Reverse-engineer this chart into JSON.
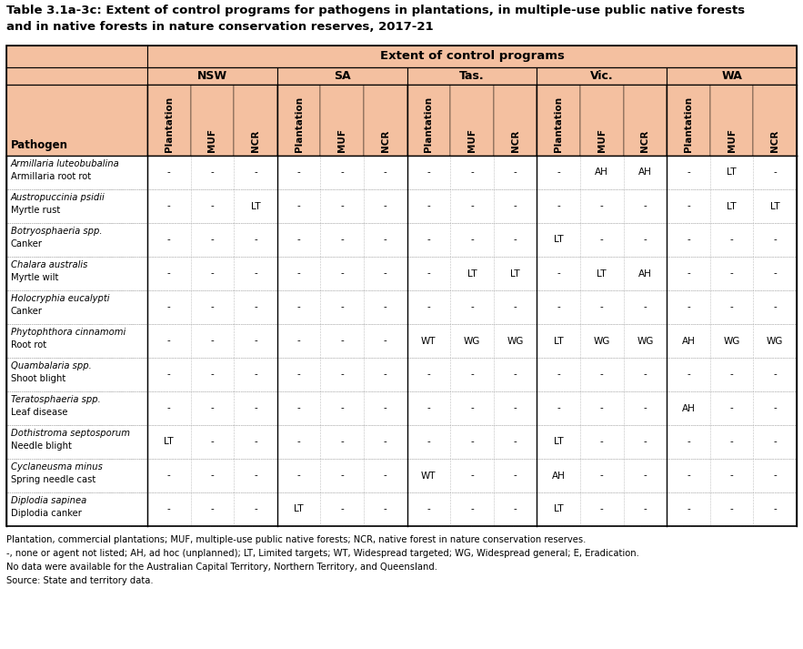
{
  "title_line1": "Table 3.1a-3c: Extent of control programs for pathogens in plantations, in multiple-use public native forests",
  "title_line2": "and in native forests in nature conservation reserves, 2017-21",
  "header_bg": "#F4C0A0",
  "states": [
    "NSW",
    "SA",
    "Tas.",
    "Vic.",
    "WA"
  ],
  "sub_headers": [
    "Plantation",
    "MUF",
    "NCR"
  ],
  "col_header": "Extent of control programs",
  "pathogens": [
    {
      "latin": "Armillaria luteobubalina",
      "common": "Armillaria root rot",
      "data": [
        "-",
        "-",
        "-",
        "-",
        "-",
        "-",
        "-",
        "-",
        "-",
        "-",
        "AH",
        "AH",
        "-",
        "LT",
        "-"
      ]
    },
    {
      "latin": "Austropuccinia psidii",
      "common": "Myrtle rust",
      "data": [
        "-",
        "-",
        "LT",
        "-",
        "-",
        "-",
        "-",
        "-",
        "-",
        "-",
        "-",
        "-",
        "-",
        "LT",
        "LT"
      ]
    },
    {
      "latin": "Botryosphaeria spp.",
      "common": "Canker",
      "data": [
        "-",
        "-",
        "-",
        "-",
        "-",
        "-",
        "-",
        "-",
        "-",
        "LT",
        "-",
        "-",
        "-",
        "-",
        "-"
      ]
    },
    {
      "latin": "Chalara australis",
      "common": "Myrtle wilt",
      "data": [
        "-",
        "-",
        "-",
        "-",
        "-",
        "-",
        "-",
        "LT",
        "LT",
        "-",
        "LT",
        "AH",
        "-",
        "-",
        "-"
      ]
    },
    {
      "latin": "Holocryphia eucalypti",
      "common": "Canker",
      "data": [
        "-",
        "-",
        "-",
        "-",
        "-",
        "-",
        "-",
        "-",
        "-",
        "-",
        "-",
        "-",
        "-",
        "-",
        "-"
      ]
    },
    {
      "latin": "Phytophthora cinnamomi",
      "common": "Root rot",
      "data": [
        "-",
        "-",
        "-",
        "-",
        "-",
        "-",
        "WT",
        "WG",
        "WG",
        "LT",
        "WG",
        "WG",
        "AH",
        "WG",
        "WG"
      ]
    },
    {
      "latin": "Quambalaria spp.",
      "common": "Shoot blight",
      "data": [
        "-",
        "-",
        "-",
        "-",
        "-",
        "-",
        "-",
        "-",
        "-",
        "-",
        "-",
        "-",
        "-",
        "-",
        "-"
      ]
    },
    {
      "latin": "Teratosphaeria spp.",
      "common": "Leaf disease",
      "data": [
        "-",
        "-",
        "-",
        "-",
        "-",
        "-",
        "-",
        "-",
        "-",
        "-",
        "-",
        "-",
        "AH",
        "-",
        "-"
      ]
    },
    {
      "latin": "Dothistroma septosporum",
      "common": "Needle blight",
      "data": [
        "LT",
        "-",
        "-",
        "-",
        "-",
        "-",
        "-",
        "-",
        "-",
        "LT",
        "-",
        "-",
        "-",
        "-",
        "-"
      ]
    },
    {
      "latin": "Cyclaneusma minus",
      "common": "Spring needle cast",
      "data": [
        "-",
        "-",
        "-",
        "-",
        "-",
        "-",
        "WT",
        "-",
        "-",
        "AH",
        "-",
        "-",
        "-",
        "-",
        "-"
      ]
    },
    {
      "latin": "Diplodia sapinea",
      "common": "Diplodia canker",
      "data": [
        "-",
        "-",
        "-",
        "LT",
        "-",
        "-",
        "-",
        "-",
        "-",
        "LT",
        "-",
        "-",
        "-",
        "-",
        "-"
      ]
    }
  ],
  "footnotes": [
    "Plantation, commercial plantations; MUF, multiple-use public native forests; NCR, native forest in nature conservation reserves.",
    "-, none or agent not listed; AH, ad hoc (unplanned); LT, Limited targets; WT, Widespread targeted; WG, Widespread general; E, Eradication.",
    "No data were available for the Australian Capital Territory, Northern Territory, and Queensland.",
    "Source: State and territory data."
  ],
  "fig_w": 8.83,
  "fig_h": 7.13,
  "dpi": 100
}
